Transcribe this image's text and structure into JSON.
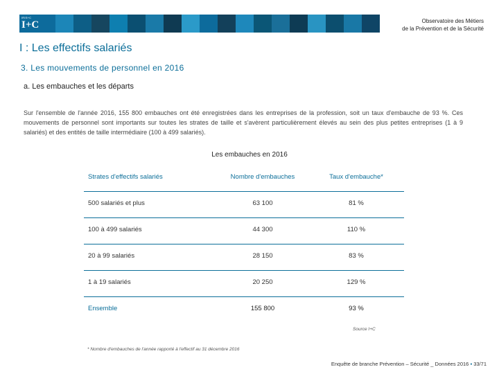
{
  "header": {
    "logo_small": "IRIS+C",
    "logo_big": "I+C",
    "observatoire_line1": "Observatoire des Métiers",
    "observatoire_line2": "de la Prévention et de la Sécurité",
    "colors": [
      "#0d6b9c",
      "#1c86b8",
      "#0d5e86",
      "#16465f",
      "#0e7fb0",
      "#0b4f71",
      "#1a7aa8",
      "#0f3a52",
      "#2b9ac9",
      "#0d6b9c",
      "#13405a",
      "#1e88bb",
      "#0b5676",
      "#1a6f99",
      "#0e3b54",
      "#2994c2",
      "#0c4e6e",
      "#1978a6",
      "#0f4566"
    ]
  },
  "section_title": "I : Les effectifs salariés",
  "sub_title": "3. Les mouvements de personnel en 2016",
  "subsub_title": "a. Les embauches et les départs",
  "paragraph": "Sur l'ensemble de l'année 2016, 155 800 embauches ont été enregistrées dans les entreprises de la profession, soit un taux d'embauche de 93 %. Ces mouvements de personnel sont importants sur toutes les strates de taille et s'avèrent particulièrement élevés au sein des plus petites entreprises (1 à 9 salariés) et des entités de taille intermédiaire (100 à 499 salariés).",
  "table": {
    "title": "Les embauches en 2016",
    "headers": [
      "Strates d'effectifs salariés",
      "Nombre d'embauches",
      "Taux d'embauche*"
    ],
    "rows": [
      [
        "500 salariés et plus",
        "63 100",
        "81 %"
      ],
      [
        "100 à 499 salariés",
        "44 300",
        "110 %"
      ],
      [
        "20 à 99 salariés",
        "28 150",
        "83 %"
      ],
      [
        "1 à 19 salariés",
        "20 250",
        "129 %"
      ]
    ],
    "total": [
      "Ensemble",
      "155 800",
      "93 %"
    ]
  },
  "source": "Source I+C",
  "footnote": "* Nombre d'embauches de l'année rapporté à l'effectif au 31 décembre 2016",
  "footer": {
    "text": "Enquête de branche Prévention – Sécurité _ Données 2016",
    "separator": "▪",
    "page": "33/71"
  }
}
